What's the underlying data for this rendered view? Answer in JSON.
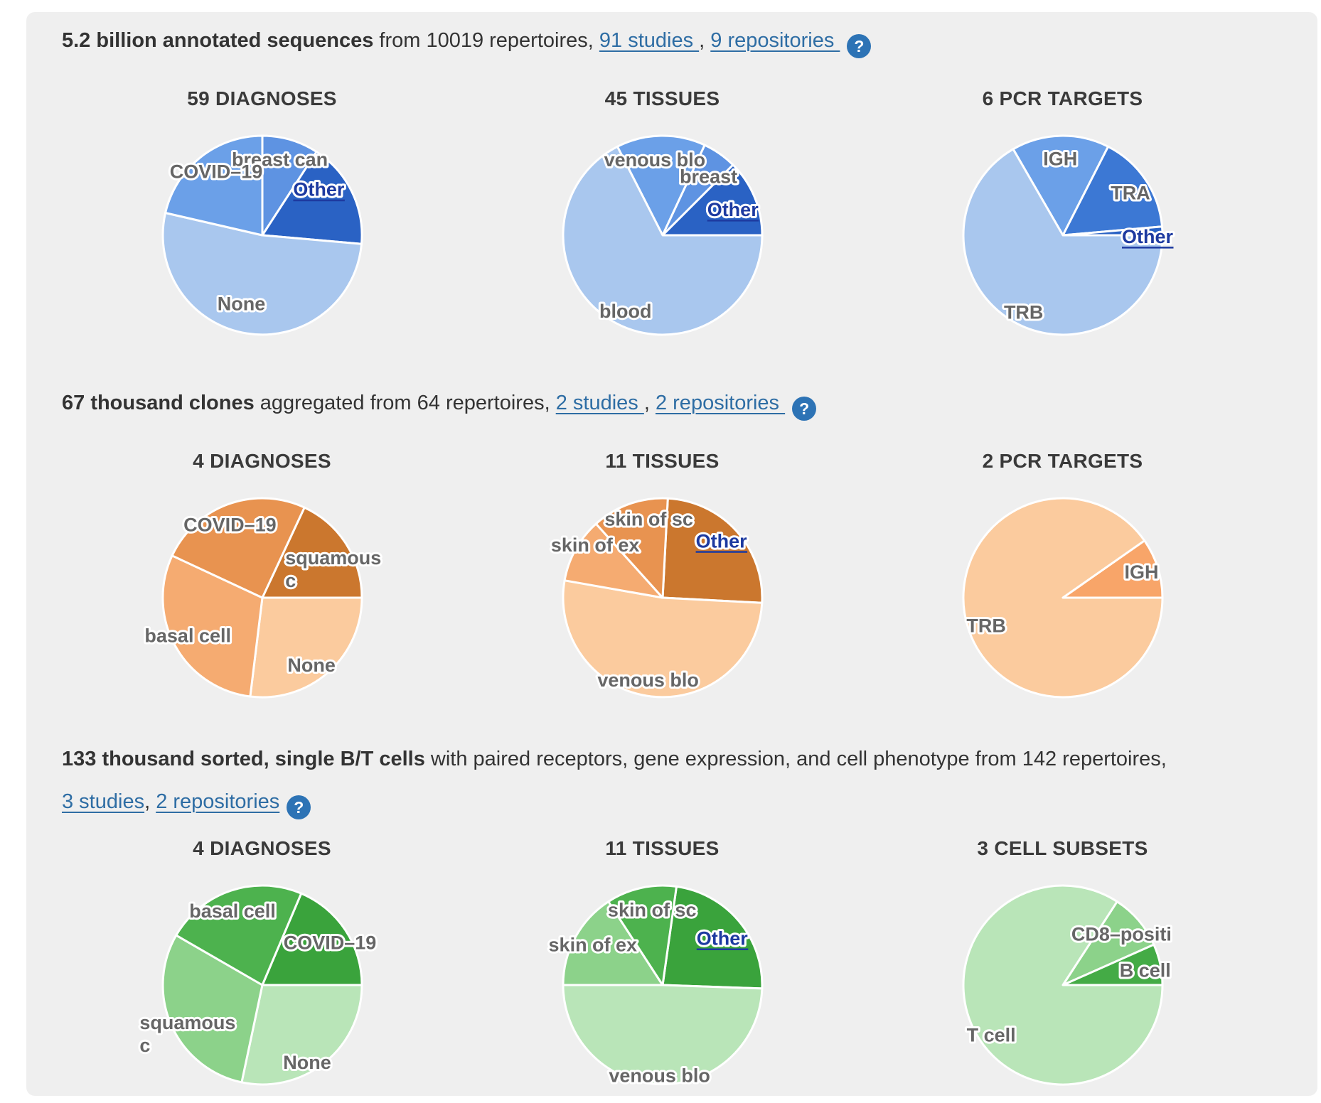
{
  "page": {
    "background": "#ffffff",
    "panel_background": "#efefef"
  },
  "colors": {
    "link": "#2e6da4",
    "help_icon_bg": "#2d73b5",
    "slice_label": "#666666",
    "other_link_label": "#1d3aa0",
    "blues": [
      "#a9c7ee",
      "#6ba0e8",
      "#5e93e2",
      "#3c78d4",
      "#2a62c4"
    ],
    "oranges": [
      "#fbcb9e",
      "#f5ab71",
      "#e89350",
      "#cb772e"
    ],
    "greens": [
      "#b9e5b8",
      "#8cd28a",
      "#4db24e",
      "#3aa33c"
    ]
  },
  "icons": {
    "help_glyph": "?"
  },
  "sections": [
    {
      "heading": {
        "parts": [
          {
            "style": "bold",
            "text": "5.2 billion annotated sequences"
          },
          {
            "style": "normal",
            "text": " from 10019 repertoires, "
          },
          {
            "style": "link",
            "text": "91 studies "
          },
          {
            "style": "normal",
            "text": ", "
          },
          {
            "style": "link",
            "text": "9 repositories "
          },
          {
            "style": "help-icon"
          }
        ]
      }
    },
    {
      "heading": {
        "parts": [
          {
            "style": "bold",
            "text": "67 thousand clones"
          },
          {
            "style": "normal",
            "text": " aggregated from 64 repertoires, "
          },
          {
            "style": "link",
            "text": "2 studies "
          },
          {
            "style": "normal",
            "text": ", "
          },
          {
            "style": "link",
            "text": "2 repositories "
          },
          {
            "style": "help-icon"
          }
        ]
      }
    },
    {
      "heading": {
        "parts": [
          {
            "style": "bold",
            "text": "133 thousand sorted, single B/T cells"
          },
          {
            "style": "normal",
            "text": " with paired receptors, gene expression, and cell phenotype from 142 repertoires, "
          },
          {
            "style": "link",
            "text": "3 studies"
          },
          {
            "style": "normal",
            "text": ", "
          },
          {
            "style": "link",
            "text": "2 repositories"
          },
          {
            "style": "help-icon"
          }
        ]
      }
    }
  ],
  "chart_data": [
    {
      "type": "pie",
      "title": "59 DIAGNOSES",
      "palette": "blues",
      "start_angle": 0,
      "slices": [
        {
          "label": "breast can",
          "angle_deg": 33,
          "fraction": 0.092,
          "color": "#5e93e2",
          "label_angle": 13,
          "label_r": 0.78
        },
        {
          "label": "Other",
          "angle_deg": 62,
          "fraction": 0.172,
          "color": "#2a62c4",
          "link": true,
          "label_angle": 51,
          "label_r": 0.73
        },
        {
          "label": "None",
          "angle_deg": 188,
          "fraction": 0.522,
          "color": "#a9c7ee",
          "label_angle": 197,
          "label_r": 0.72
        },
        {
          "label": "COVID–19",
          "angle_deg": 77,
          "fraction": 0.214,
          "color": "#6ba0e8",
          "label_angle": 324,
          "label_r": 0.79
        }
      ]
    },
    {
      "type": "pie",
      "title": "45 TISSUES",
      "palette": "blues",
      "start_angle": 333,
      "slices": [
        {
          "label": "venous blo",
          "angle_deg": 52,
          "fraction": 0.144,
          "color": "#6ba0e8",
          "label_angle": 354,
          "label_r": 0.76
        },
        {
          "label": "breast",
          "angle_deg": 20,
          "fraction": 0.056,
          "color": "#5e93e2",
          "label_angle": 38,
          "label_r": 0.75
        },
        {
          "label": "Other",
          "angle_deg": 45,
          "fraction": 0.125,
          "color": "#2a62c4",
          "link": true,
          "label_angle": 70,
          "label_r": 0.75
        },
        {
          "label": "blood",
          "angle_deg": 243,
          "fraction": 0.675,
          "color": "#a9c7ee",
          "label_angle": 206,
          "label_r": 0.85
        }
      ]
    },
    {
      "type": "pie",
      "title": "6 PCR TARGETS",
      "palette": "blues",
      "start_angle": 330,
      "slices": [
        {
          "label": "IGH",
          "angle_deg": 57,
          "fraction": 0.158,
          "color": "#6ba0e8",
          "label_angle": 358,
          "label_r": 0.77
        },
        {
          "label": "TRA",
          "angle_deg": 58,
          "fraction": 0.161,
          "color": "#3c78d4",
          "label_angle": 58,
          "label_r": 0.8
        },
        {
          "label": "Other",
          "angle_deg": 5,
          "fraction": 0.014,
          "color": "#2a62c4",
          "link": true,
          "label_angle": 91,
          "label_r": 0.85
        },
        {
          "label": "TRB",
          "angle_deg": 240,
          "fraction": 0.667,
          "color": "#a9c7ee",
          "label_angle": 207,
          "label_r": 0.87
        }
      ]
    },
    {
      "type": "pie",
      "title": "4 DIAGNOSES",
      "palette": "oranges",
      "start_angle": 25,
      "slices": [
        {
          "label": "squamous c",
          "lines": [
            "squamous",
            "c"
          ],
          "anchor": "start",
          "angle_deg": 65,
          "fraction": 0.181,
          "color": "#cb772e",
          "label_angle": 30,
          "label_r": 0.46
        },
        {
          "label": "None",
          "angle_deg": 97,
          "fraction": 0.269,
          "color": "#fbcb9e",
          "label_angle": 144,
          "label_r": 0.84
        },
        {
          "label": "basal cell",
          "angle_deg": 108,
          "fraction": 0.3,
          "color": "#f5ab71",
          "label_angle": 243,
          "label_r": 0.84
        },
        {
          "label": "COVID–19",
          "angle_deg": 90,
          "fraction": 0.25,
          "color": "#e89350",
          "label_angle": 336,
          "label_r": 0.8
        }
      ]
    },
    {
      "type": "pie",
      "title": "11 TISSUES",
      "palette": "oranges",
      "start_angle": 3,
      "slices": [
        {
          "label": "Other",
          "angle_deg": 90,
          "fraction": 0.25,
          "color": "#cb772e",
          "link": true,
          "label_angle": 46,
          "label_r": 0.82
        },
        {
          "label": "venous blo",
          "angle_deg": 187,
          "fraction": 0.519,
          "color": "#fbcb9e",
          "label_angle": 190,
          "label_r": 0.84
        },
        {
          "label": "skin of ex",
          "angle_deg": 38,
          "fraction": 0.106,
          "color": "#f5ab71",
          "label_angle": 308,
          "label_r": 0.86
        },
        {
          "label": "skin of sc",
          "angle_deg": 45,
          "fraction": 0.125,
          "color": "#e89350",
          "label_angle": 350,
          "label_r": 0.8
        }
      ]
    },
    {
      "type": "pie",
      "title": "2 PCR TARGETS",
      "palette": "oranges",
      "start_angle": 55,
      "slices": [
        {
          "label": "IGH",
          "angle_deg": 35,
          "fraction": 0.097,
          "color": "#f8a569",
          "label_angle": 72,
          "label_r": 0.83
        },
        {
          "label": "TRB",
          "angle_deg": 325,
          "fraction": 0.903,
          "color": "#fbcb9e",
          "label_angle": 250,
          "label_r": 0.82
        }
      ]
    },
    {
      "type": "pie",
      "title": "4 DIAGNOSES",
      "palette": "greens",
      "start_angle": 23,
      "slices": [
        {
          "label": "COVID–19",
          "angle_deg": 67,
          "fraction": 0.186,
          "color": "#3aa33c",
          "label_angle": 58,
          "label_r": 0.8
        },
        {
          "label": "None",
          "angle_deg": 102,
          "fraction": 0.283,
          "color": "#b9e5b8",
          "label_angle": 150,
          "label_r": 0.9
        },
        {
          "label": "squamous c",
          "lines": [
            "squamous",
            "c"
          ],
          "anchor": "start",
          "angle_deg": 108,
          "fraction": 0.3,
          "color": "#8cd28a",
          "label_angle": 253,
          "label_r": 1.29
        },
        {
          "label": "basal cell",
          "angle_deg": 83,
          "fraction": 0.231,
          "color": "#4db24e",
          "label_angle": 338,
          "label_r": 0.8
        }
      ]
    },
    {
      "type": "pie",
      "title": "11 TISSUES",
      "palette": "greens",
      "start_angle": 8,
      "slices": [
        {
          "label": "Other",
          "angle_deg": 84,
          "fraction": 0.233,
          "color": "#3aa33c",
          "link": true,
          "label_angle": 52,
          "label_r": 0.76
        },
        {
          "label": "venous blo",
          "angle_deg": 178,
          "fraction": 0.494,
          "color": "#b9e5b8",
          "label_angle": 182,
          "label_r": 0.91
        },
        {
          "label": "skin of ex",
          "angle_deg": 57,
          "fraction": 0.158,
          "color": "#8cd28a",
          "label_angle": 300,
          "label_r": 0.81
        },
        {
          "label": "skin of sc",
          "angle_deg": 41,
          "fraction": 0.114,
          "color": "#4db24e",
          "label_angle": 352,
          "label_r": 0.76
        }
      ]
    },
    {
      "type": "pie",
      "title": "3 CELL SUBSETS",
      "palette": "greens",
      "start_angle": 33,
      "slices": [
        {
          "label": "CD8–positi",
          "angle_deg": 33,
          "fraction": 0.092,
          "color": "#8cd28a",
          "label_angle": 49,
          "label_r": 0.78
        },
        {
          "label": "B cell",
          "angle_deg": 24,
          "fraction": 0.067,
          "color": "#44ab46",
          "label_angle": 80,
          "label_r": 0.84
        },
        {
          "label": "T cell",
          "angle_deg": 303,
          "fraction": 0.842,
          "color": "#b9e5b8",
          "label_angle": 235,
          "label_r": 0.88
        }
      ]
    }
  ]
}
